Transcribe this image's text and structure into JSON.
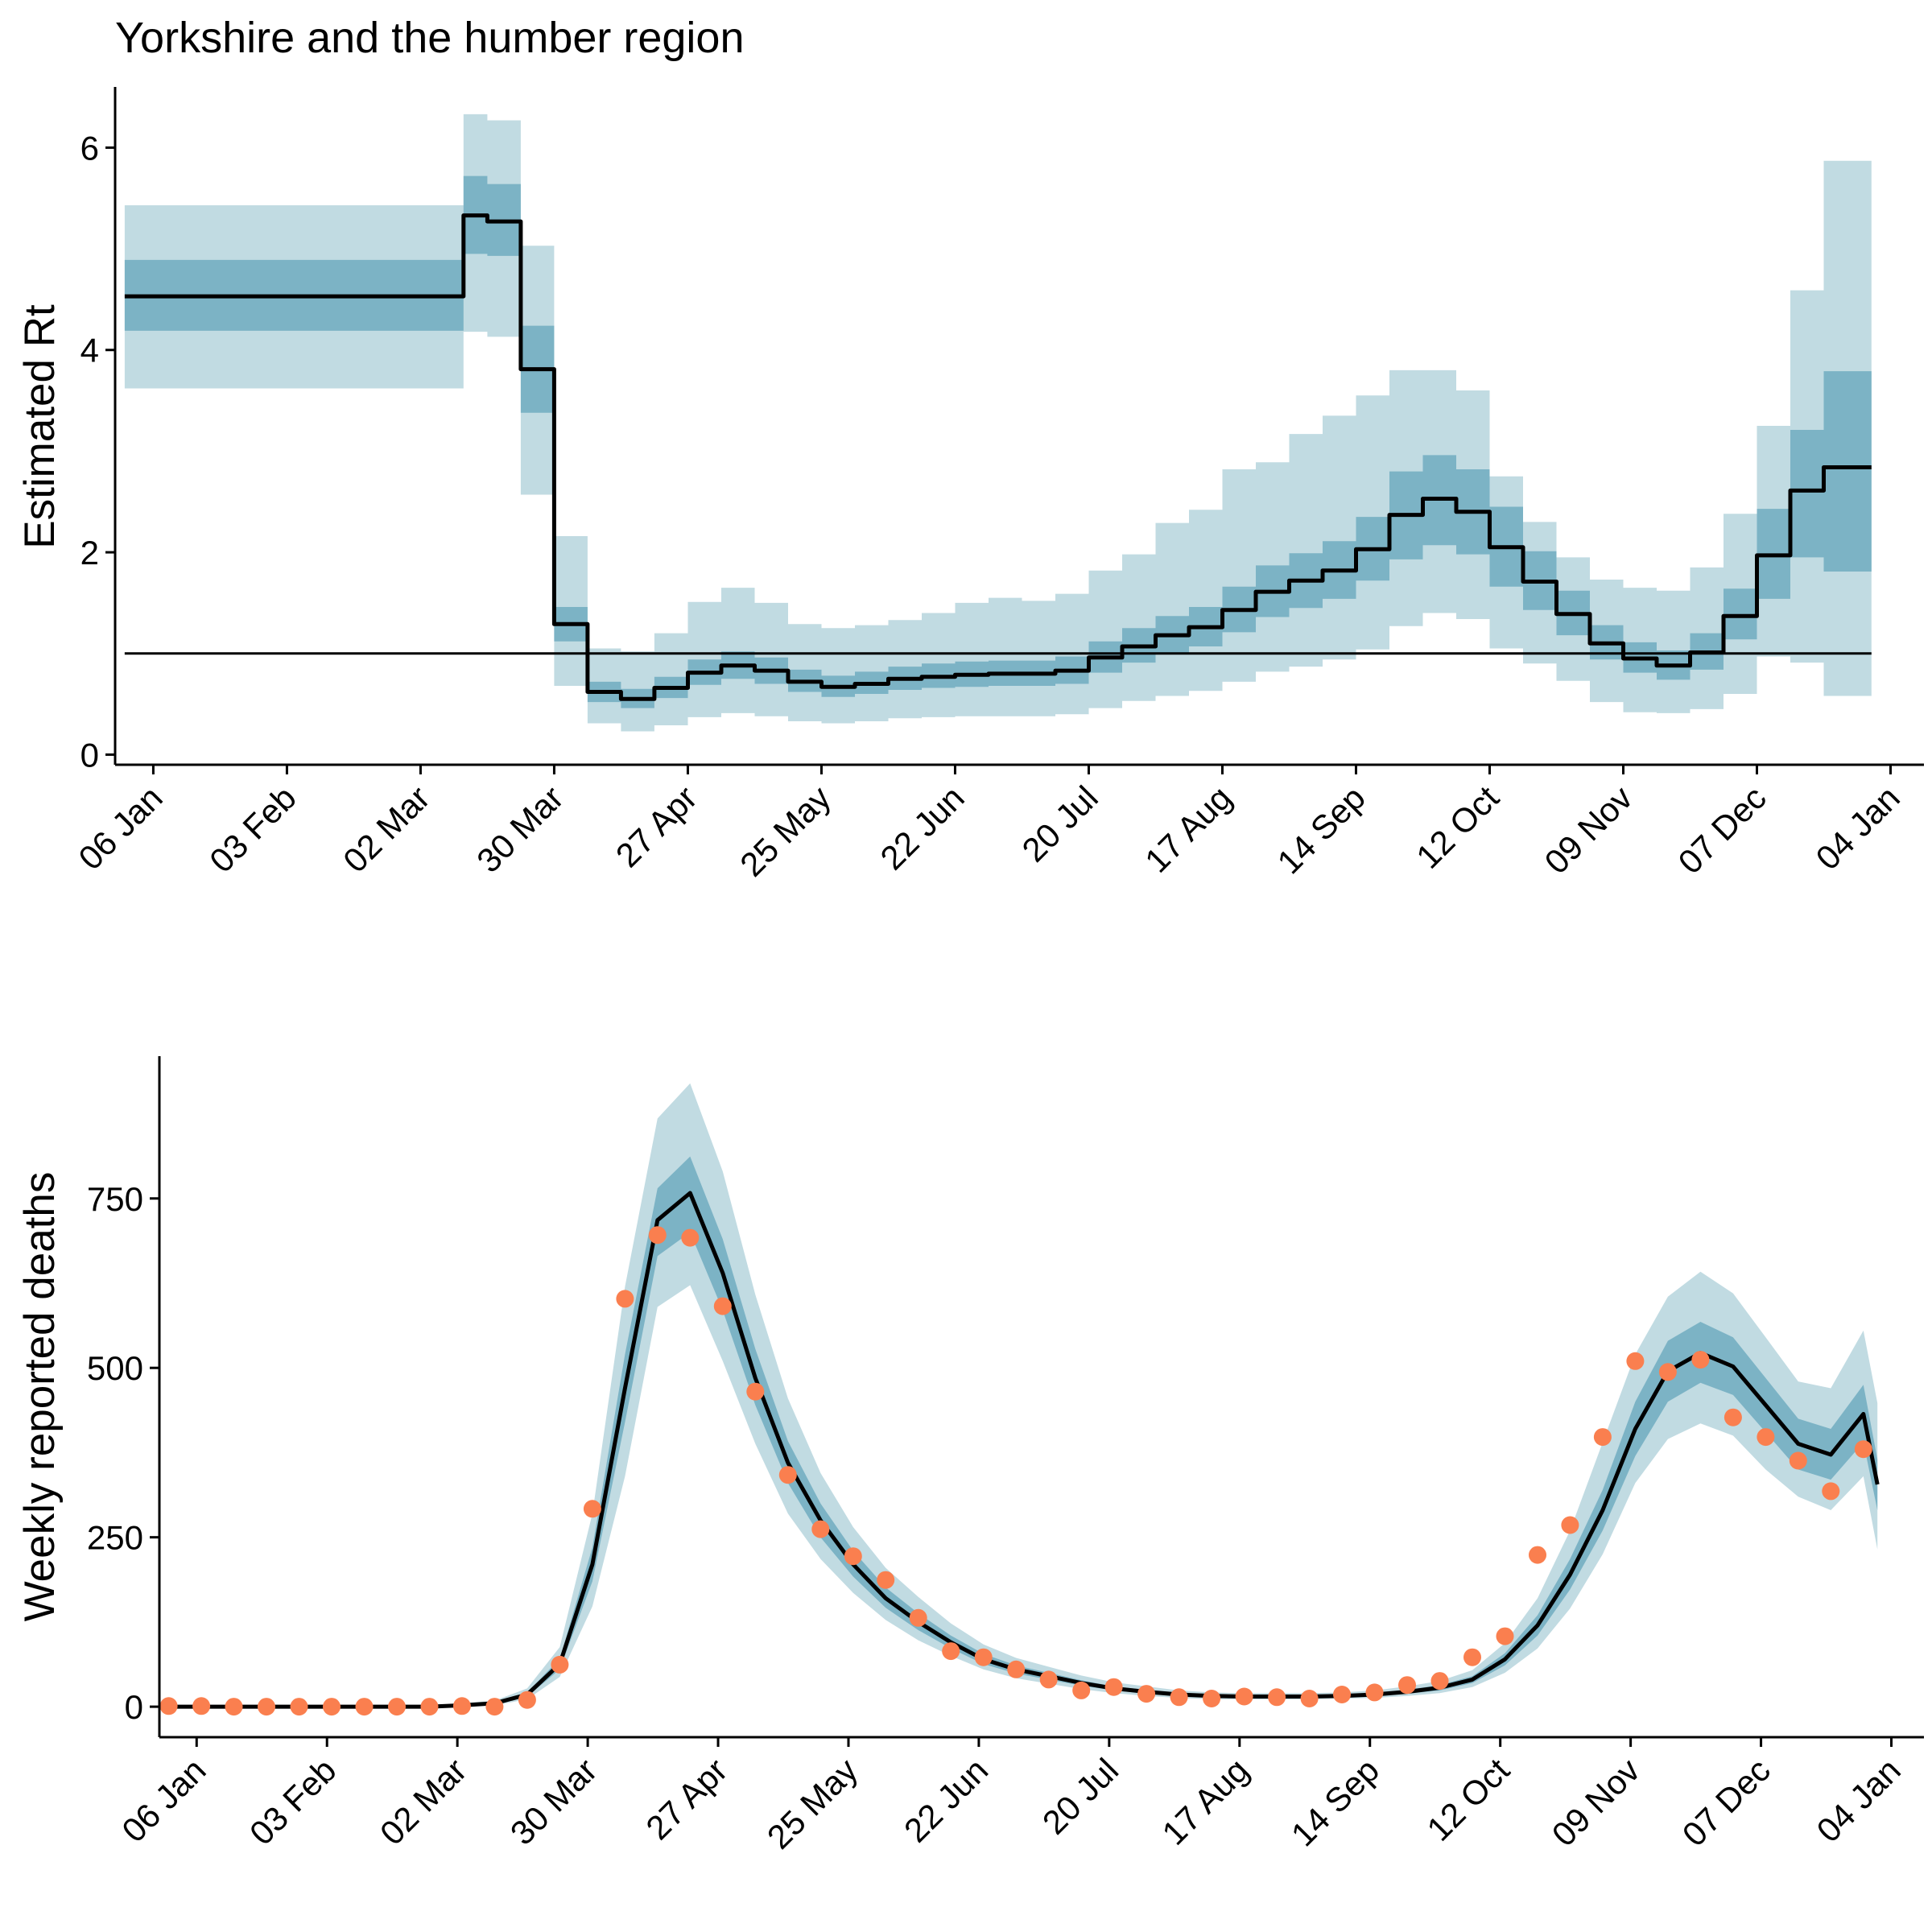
{
  "chart_data": [
    {
      "type": "area",
      "title": "Yorkshire and the humber region",
      "xlabel": "",
      "ylabel": "Estimated Rt",
      "xlim": [
        "2019-12-29",
        "2021-01-11"
      ],
      "ylim": [
        -0.1,
        6.6
      ],
      "yticks": [
        0,
        2,
        4,
        6
      ],
      "xtick_labels": [
        "06 Jan",
        "03 Feb",
        "02 Mar",
        "30 Mar",
        "27 Apr",
        "25 May",
        "22 Jun",
        "20 Jul",
        "17 Aug",
        "14 Sep",
        "12 Oct",
        "09 Nov",
        "07 Dec",
        "04 Jan"
      ],
      "xtick_dates": [
        "2020-01-06",
        "2020-02-03",
        "2020-03-02",
        "2020-03-30",
        "2020-04-27",
        "2020-05-25",
        "2020-06-22",
        "2020-07-20",
        "2020-08-17",
        "2020-09-14",
        "2020-10-12",
        "2020-11-09",
        "2020-12-07",
        "2021-01-04"
      ],
      "reference_line": 1,
      "colors": {
        "outer_band": "#c1dbe2",
        "inner_band": "#7cb3c5",
        "line": "#000000"
      },
      "step_breaks": [
        "2019-12-31",
        "2020-03-11",
        "2020-03-16",
        "2020-03-23",
        "2020-03-30",
        "2020-04-06",
        "2020-04-13",
        "2020-04-20",
        "2020-04-27",
        "2020-05-04",
        "2020-05-11",
        "2020-05-18",
        "2020-05-25",
        "2020-06-01",
        "2020-06-08",
        "2020-06-15",
        "2020-06-22",
        "2020-06-29",
        "2020-07-06",
        "2020-07-13",
        "2020-07-20",
        "2020-07-27",
        "2020-08-03",
        "2020-08-10",
        "2020-08-17",
        "2020-08-24",
        "2020-08-31",
        "2020-09-07",
        "2020-09-14",
        "2020-09-21",
        "2020-09-28",
        "2020-10-05",
        "2020-10-12",
        "2020-10-19",
        "2020-10-26",
        "2020-11-02",
        "2020-11-09",
        "2020-11-16",
        "2020-11-23",
        "2020-11-30",
        "2020-12-07",
        "2020-12-14",
        "2020-12-21",
        "2020-12-31"
      ],
      "rt_median": [
        4.53,
        5.33,
        5.27,
        3.81,
        1.29,
        0.62,
        0.55,
        0.66,
        0.81,
        0.88,
        0.83,
        0.72,
        0.67,
        0.7,
        0.75,
        0.77,
        0.79,
        0.8,
        0.8,
        0.83,
        0.96,
        1.07,
        1.18,
        1.26,
        1.43,
        1.61,
        1.72,
        1.82,
        2.03,
        2.37,
        2.53,
        2.4,
        2.05,
        1.71,
        1.39,
        1.1,
        0.95,
        0.88,
        1.01,
        1.37,
        1.97,
        2.61,
        2.84
      ],
      "rt_inner_low": [
        4.19,
        4.95,
        4.93,
        3.38,
        1.12,
        0.52,
        0.46,
        0.56,
        0.69,
        0.75,
        0.7,
        0.62,
        0.57,
        0.6,
        0.64,
        0.66,
        0.67,
        0.68,
        0.68,
        0.7,
        0.81,
        0.91,
        0.99,
        1.07,
        1.21,
        1.36,
        1.45,
        1.54,
        1.72,
        1.93,
        2.07,
        1.98,
        1.66,
        1.43,
        1.18,
        0.94,
        0.81,
        0.74,
        0.84,
        1.14,
        1.54,
        1.95,
        1.81
      ],
      "rt_inner_high": [
        4.89,
        5.72,
        5.64,
        4.24,
        1.46,
        0.72,
        0.65,
        0.77,
        0.94,
        1.02,
        0.96,
        0.84,
        0.78,
        0.82,
        0.87,
        0.9,
        0.92,
        0.93,
        0.93,
        0.97,
        1.12,
        1.25,
        1.37,
        1.46,
        1.66,
        1.87,
        1.99,
        2.11,
        2.35,
        2.8,
        2.96,
        2.82,
        2.45,
        2.01,
        1.62,
        1.28,
        1.11,
        1.03,
        1.2,
        1.64,
        2.43,
        3.21,
        3.79
      ],
      "rt_outer_low": [
        3.62,
        4.18,
        4.13,
        2.57,
        0.68,
        0.31,
        0.23,
        0.29,
        0.37,
        0.41,
        0.38,
        0.33,
        0.31,
        0.33,
        0.36,
        0.37,
        0.38,
        0.38,
        0.38,
        0.4,
        0.46,
        0.53,
        0.58,
        0.63,
        0.72,
        0.82,
        0.87,
        0.94,
        1.04,
        1.27,
        1.4,
        1.34,
        1.05,
        0.9,
        0.73,
        0.52,
        0.42,
        0.41,
        0.45,
        0.6,
        0.97,
        0.91,
        0.58
      ],
      "rt_outer_high": [
        5.43,
        6.33,
        6.27,
        5.03,
        2.16,
        1.05,
        1.02,
        1.2,
        1.51,
        1.65,
        1.5,
        1.29,
        1.25,
        1.28,
        1.33,
        1.4,
        1.5,
        1.55,
        1.52,
        1.59,
        1.82,
        1.98,
        2.29,
        2.42,
        2.82,
        2.89,
        3.17,
        3.35,
        3.55,
        3.8,
        3.8,
        3.6,
        2.75,
        2.3,
        1.95,
        1.73,
        1.65,
        1.62,
        1.85,
        2.38,
        3.25,
        4.59,
        5.87
      ]
    },
    {
      "type": "line",
      "title": "",
      "xlabel": "",
      "ylabel": "Weekly reported deaths",
      "xlim": [
        "2019-12-29",
        "2021-01-11"
      ],
      "ylim": [
        -45,
        960
      ],
      "yticks": [
        0,
        250,
        500,
        750
      ],
      "xtick_labels": [
        "06 Jan",
        "03 Feb",
        "02 Mar",
        "30 Mar",
        "27 Apr",
        "25 May",
        "22 Jun",
        "20 Jul",
        "17 Aug",
        "14 Sep",
        "12 Oct",
        "09 Nov",
        "07 Dec",
        "04 Jan"
      ],
      "xtick_dates": [
        "2020-01-06",
        "2020-02-03",
        "2020-03-02",
        "2020-03-30",
        "2020-04-27",
        "2020-05-25",
        "2020-06-22",
        "2020-07-20",
        "2020-08-17",
        "2020-09-14",
        "2020-10-12",
        "2020-11-09",
        "2020-12-07",
        "2021-01-04"
      ],
      "colors": {
        "outer_band": "#c1dbe2",
        "inner_band": "#7cb3c5",
        "line": "#000000",
        "points": "#fa7f4f"
      },
      "weeks": [
        "2019-12-31",
        "2020-01-07",
        "2020-01-14",
        "2020-01-21",
        "2020-01-28",
        "2020-02-04",
        "2020-02-11",
        "2020-02-18",
        "2020-02-25",
        "2020-03-03",
        "2020-03-10",
        "2020-03-17",
        "2020-03-24",
        "2020-03-31",
        "2020-04-07",
        "2020-04-14",
        "2020-04-21",
        "2020-04-28",
        "2020-05-05",
        "2020-05-12",
        "2020-05-19",
        "2020-05-26",
        "2020-06-02",
        "2020-06-09",
        "2020-06-16",
        "2020-06-23",
        "2020-06-30",
        "2020-07-07",
        "2020-07-14",
        "2020-07-21",
        "2020-07-28",
        "2020-08-04",
        "2020-08-11",
        "2020-08-18",
        "2020-08-25",
        "2020-09-01",
        "2020-09-08",
        "2020-09-15",
        "2020-09-22",
        "2020-09-29",
        "2020-10-06",
        "2020-10-13",
        "2020-10-20",
        "2020-10-27",
        "2020-11-03",
        "2020-11-10",
        "2020-11-17",
        "2020-11-24",
        "2020-12-01",
        "2020-12-08",
        "2020-12-15",
        "2020-12-22",
        "2020-12-29"
      ],
      "observed": [
        1,
        1,
        0,
        0,
        0,
        0,
        0,
        0,
        0,
        1,
        0,
        10,
        62,
        292,
        602,
        696,
        692,
        591,
        465,
        342,
        262,
        222,
        187,
        131,
        82,
        73,
        55,
        40,
        24,
        29,
        19,
        14,
        12,
        15,
        14,
        12,
        18,
        21,
        32,
        38,
        73,
        104,
        224,
        268,
        398,
        510,
        494,
        512,
        427,
        398,
        363,
        318,
        380
      ],
      "fitted": [
        0,
        0,
        0,
        0,
        0,
        0,
        0,
        0,
        0,
        2,
        5,
        18,
        63,
        210,
        470,
        718,
        758,
        640,
        485,
        360,
        275,
        210,
        160,
        125,
        95,
        70,
        55,
        45,
        35,
        27,
        22,
        18,
        16,
        15,
        15,
        15,
        16,
        18,
        22,
        28,
        40,
        70,
        120,
        195,
        290,
        410,
        495,
        522,
        502,
        445,
        388,
        372,
        432,
        328
      ],
      "band_weeks": [
        "2019-12-31",
        "2020-01-07",
        "2020-01-14",
        "2020-01-21",
        "2020-01-28",
        "2020-02-04",
        "2020-02-11",
        "2020-02-18",
        "2020-02-25",
        "2020-03-03",
        "2020-03-10",
        "2020-03-17",
        "2020-03-24",
        "2020-03-31",
        "2020-04-07",
        "2020-04-14",
        "2020-04-21",
        "2020-04-28",
        "2020-05-05",
        "2020-05-12",
        "2020-05-19",
        "2020-05-26",
        "2020-06-02",
        "2020-06-09",
        "2020-06-16",
        "2020-06-23",
        "2020-06-30",
        "2020-07-07",
        "2020-07-14",
        "2020-07-21",
        "2020-07-28",
        "2020-08-04",
        "2020-08-11",
        "2020-08-18",
        "2020-08-25",
        "2020-09-01",
        "2020-09-08",
        "2020-09-15",
        "2020-09-22",
        "2020-09-29",
        "2020-10-06",
        "2020-10-13",
        "2020-10-20",
        "2020-10-27",
        "2020-11-03",
        "2020-11-10",
        "2020-11-17",
        "2020-11-24",
        "2020-12-01",
        "2020-12-08",
        "2020-12-15",
        "2020-12-22",
        "2020-12-29",
        "2021-01-01"
      ],
      "fitted_inner_low": [
        0,
        0,
        0,
        0,
        0,
        0,
        0,
        0,
        0,
        1,
        4,
        15,
        55,
        185,
        420,
        665,
        700,
        585,
        445,
        330,
        250,
        192,
        146,
        113,
        86,
        63,
        49,
        40,
        31,
        24,
        19,
        16,
        14,
        13,
        13,
        13,
        14,
        16,
        19,
        24,
        35,
        61,
        105,
        173,
        260,
        370,
        450,
        478,
        460,
        405,
        350,
        335,
        390,
        290
      ],
      "fitted_inner_high": [
        0,
        0,
        0,
        0,
        0,
        0,
        0,
        0,
        0,
        3,
        6,
        21,
        71,
        235,
        520,
        765,
        812,
        690,
        528,
        392,
        300,
        230,
        176,
        138,
        105,
        78,
        61,
        50,
        39,
        30,
        25,
        20,
        18,
        17,
        17,
        17,
        18,
        20,
        25,
        32,
        45,
        79,
        135,
        218,
        320,
        450,
        540,
        568,
        545,
        485,
        425,
        410,
        475,
        365
      ],
      "fitted_outer_low": [
        0,
        0,
        0,
        0,
        0,
        0,
        0,
        0,
        0,
        0,
        2,
        11,
        44,
        148,
        340,
        590,
        622,
        510,
        388,
        285,
        218,
        168,
        128,
        98,
        75,
        55,
        42,
        34,
        26,
        20,
        16,
        13,
        11,
        11,
        11,
        11,
        12,
        13,
        16,
        20,
        29,
        50,
        86,
        145,
        225,
        330,
        395,
        418,
        400,
        350,
        310,
        290,
        340,
        232
      ],
      "fitted_outer_high": [
        0,
        0,
        0,
        0,
        0,
        0,
        0,
        0,
        0,
        5,
        9,
        27,
        88,
        285,
        620,
        868,
        920,
        790,
        608,
        455,
        345,
        265,
        205,
        162,
        123,
        92,
        72,
        59,
        46,
        36,
        30,
        24,
        21,
        20,
        20,
        20,
        21,
        24,
        30,
        38,
        54,
        94,
        160,
        260,
        390,
        520,
        605,
        642,
        610,
        545,
        480,
        470,
        555,
        448
      ]
    }
  ]
}
